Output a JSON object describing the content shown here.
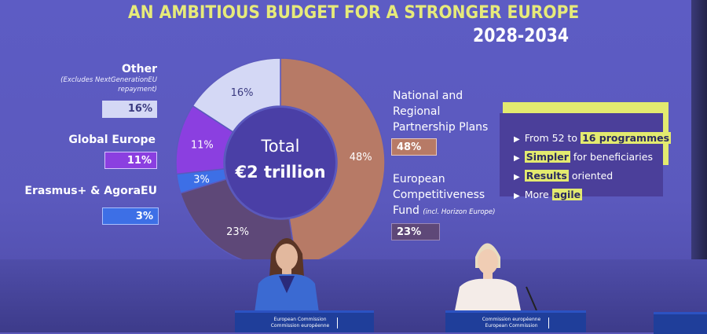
{
  "title": "AN AMBITIOUS BUDGET FOR A STRONGER EUROPE",
  "years": "2028-2034",
  "center": {
    "line1": "Total",
    "line2": "€2 trillion"
  },
  "left_labels": [
    {
      "label": "Other",
      "note1": "(Excludes NextGenerationEU",
      "note2": "repayment)",
      "pct": "16%",
      "color": "#d4d8f5"
    },
    {
      "label": "Global Europe",
      "pct": "11%",
      "color": "#8b3fe0"
    },
    {
      "label": "Erasmus+ & AgoraEU",
      "pct": "3%",
      "color": "#3d6fe6"
    }
  ],
  "right_labels": [
    {
      "line1": "National and",
      "line2": "Regional",
      "line3": "Partnership Plans",
      "pct": "48%",
      "color": "#b77a66"
    },
    {
      "line1": "European",
      "line2": "Competitiveness",
      "line3": "Fund",
      "note": "(incl. Horizon Europe)",
      "pct": "23%",
      "color": "#5e4878"
    }
  ],
  "callout": {
    "b1_pre": "From 52 to ",
    "b1_hl": "16 programmes",
    "b2_hl": "Simpler",
    "b2_post": " for beneficiaries",
    "b3_hl": "Results",
    "b3_post": " oriented",
    "b4_pre": "More ",
    "b4_hl": "agile"
  },
  "podiums": [
    {
      "line1": "European Commission",
      "line2": "Commission européenne"
    },
    {
      "line1": "Commission européenne",
      "line2": "European Commission"
    }
  ],
  "chart_data": {
    "type": "pie",
    "title": "AN AMBITIOUS BUDGET FOR A STRONGER EUROPE 2028-2034",
    "categories": [
      "National and Regional Partnership Plans",
      "European Competitiveness Fund",
      "Erasmus+ & AgoraEU",
      "Global Europe",
      "Other"
    ],
    "values": [
      48,
      23,
      3,
      11,
      16
    ],
    "labels": [
      "48%",
      "23%",
      "3%",
      "11%",
      "16%"
    ],
    "colors": [
      "#b77a66",
      "#5e4878",
      "#3d6fe6",
      "#8b3fe0",
      "#d4d8f5"
    ],
    "label_colors": [
      "#ffffff",
      "#ffffff",
      "#ffffff",
      "#ffffff",
      "#3a3a80"
    ],
    "donut": true,
    "center_text": "Total €2 trillion",
    "start": "top",
    "direction": "clockwise"
  }
}
